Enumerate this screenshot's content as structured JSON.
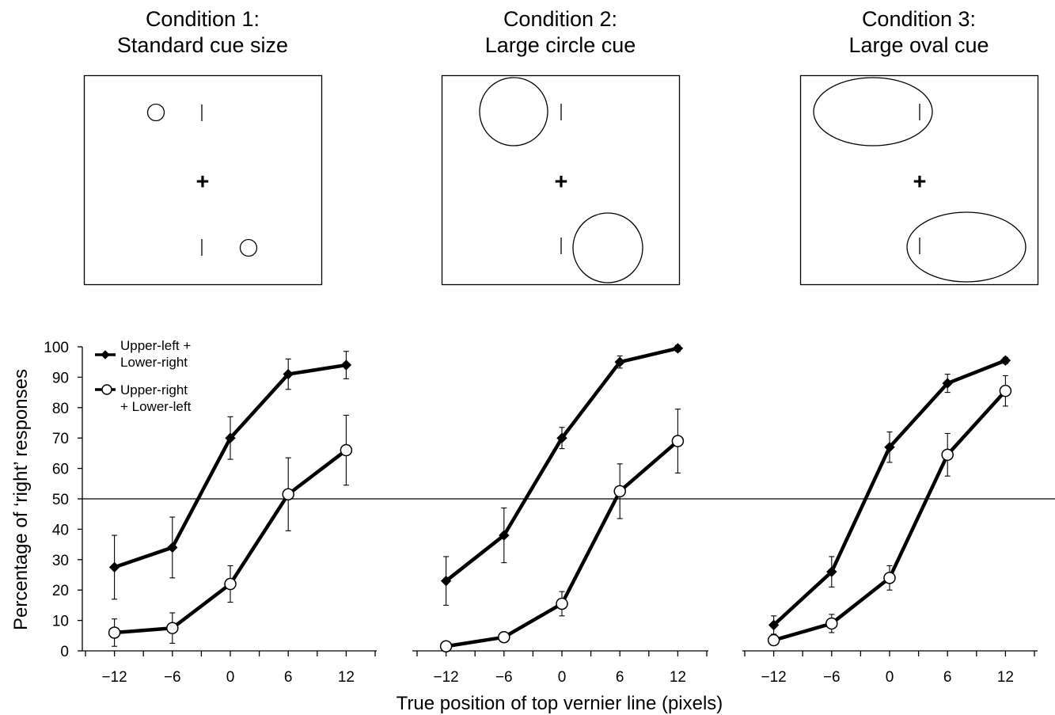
{
  "conditions": [
    {
      "line1": "Condition 1:",
      "line2": "Standard cue size",
      "cue": "small-circles"
    },
    {
      "line1": "Condition 2:",
      "line2": "Large circle cue",
      "cue": "large-circles"
    },
    {
      "line1": "Condition 3:",
      "line2": "Large oval cue",
      "cue": "large-ovals"
    }
  ],
  "fixation_symbol": "+",
  "chart_data": {
    "type": "line",
    "ylabel": "Percentage of ‘right’ responses",
    "xlabel": "True position of top vernier line (pixels)",
    "ylim": [
      0,
      100
    ],
    "yticks": [
      0,
      10,
      20,
      30,
      40,
      50,
      60,
      70,
      80,
      90,
      100
    ],
    "xticks": [
      -12,
      -6,
      0,
      6,
      12
    ],
    "xtick_labels": [
      "−12",
      "−6",
      "0",
      "6",
      "12"
    ],
    "reference_line": 50,
    "legend": {
      "placement": "top-left",
      "entries": [
        {
          "series": 0,
          "line1": "Upper-left +",
          "line2": "Lower-right",
          "marker": "filled-diamond"
        },
        {
          "series": 1,
          "line1": "Upper-right",
          "line2": "+ Lower-left",
          "marker": "open-circle"
        }
      ]
    },
    "panels": [
      {
        "condition": "Condition 1",
        "series": [
          {
            "name": "Upper-left + Lower-right",
            "marker": "filled-diamond",
            "x": [
              -12,
              -6,
              0,
              6,
              12
            ],
            "y": [
              27.5,
              34,
              70,
              91,
              94
            ],
            "err": [
              10.5,
              10,
              7,
              5,
              4.5
            ]
          },
          {
            "name": "Upper-right + Lower-left",
            "marker": "open-circle",
            "x": [
              -12,
              -6,
              0,
              6,
              12
            ],
            "y": [
              6,
              7.5,
              22,
              51.5,
              66
            ],
            "err": [
              4.5,
              5,
              6,
              12,
              11.5
            ]
          }
        ]
      },
      {
        "condition": "Condition 2",
        "series": [
          {
            "name": "Upper-left + Lower-right",
            "marker": "filled-diamond",
            "x": [
              -12,
              -6,
              0,
              6,
              12
            ],
            "y": [
              23,
              38,
              70,
              95,
              99.5
            ],
            "err": [
              8,
              9,
              3.5,
              2,
              1
            ]
          },
          {
            "name": "Upper-right + Lower-left",
            "marker": "open-circle",
            "x": [
              -12,
              -6,
              0,
              6,
              12
            ],
            "y": [
              1.5,
              4.5,
              15.5,
              52.5,
              69
            ],
            "err": [
              1,
              1,
              4,
              9,
              10.5
            ]
          }
        ]
      },
      {
        "condition": "Condition 3",
        "series": [
          {
            "name": "Upper-left + Lower-right",
            "marker": "filled-diamond",
            "x": [
              -12,
              -6,
              0,
              6,
              12
            ],
            "y": [
              8.5,
              26,
              67,
              88,
              95.5
            ],
            "err": [
              3,
              5,
              5,
              3,
              1
            ]
          },
          {
            "name": "Upper-right + Lower-left",
            "marker": "open-circle",
            "x": [
              -12,
              -6,
              0,
              6,
              12
            ],
            "y": [
              3.5,
              9,
              24,
              64.5,
              85.5
            ],
            "err": [
              1,
              3,
              4,
              7,
              5
            ]
          }
        ]
      }
    ]
  }
}
